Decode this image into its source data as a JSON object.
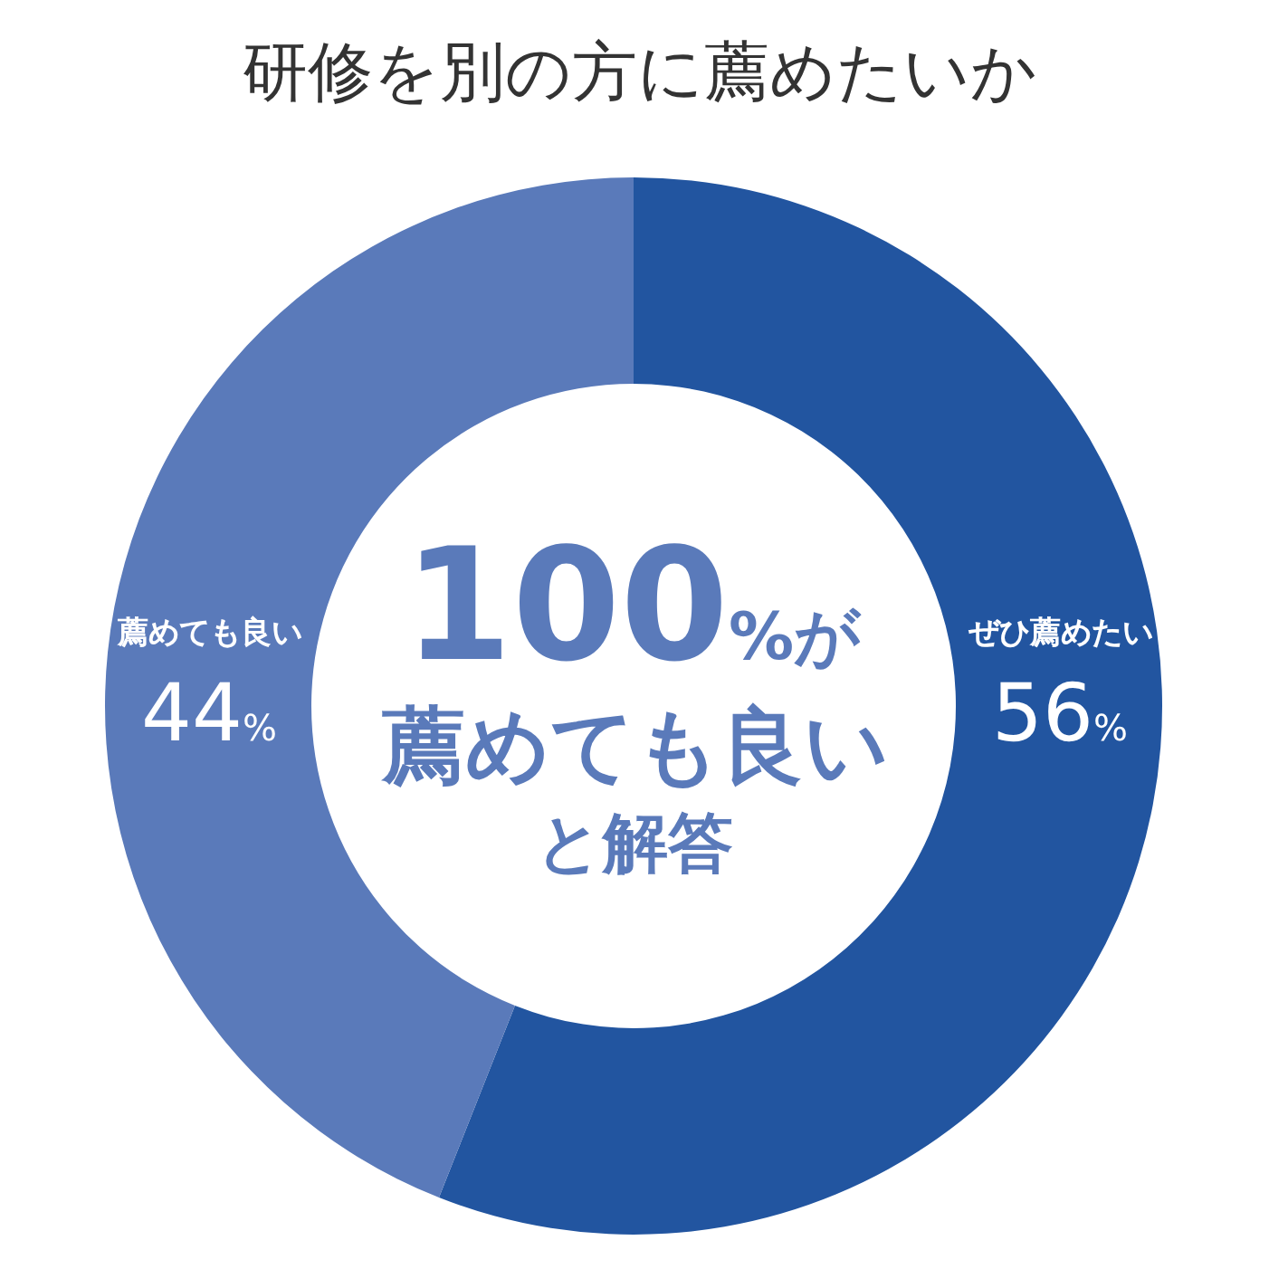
{
  "chart_data": {
    "type": "donut",
    "title": "研修を別の方に薦めたいか",
    "categories": [
      "ぜひ薦めたい",
      "薦めても良い"
    ],
    "values": [
      56,
      44
    ],
    "colors": [
      "#2255a0",
      "#5a7aba"
    ],
    "value_labels": [
      "56%",
      "44%"
    ],
    "annotations": [
      "100%が",
      "薦めても良い",
      "と解答"
    ]
  }
}
